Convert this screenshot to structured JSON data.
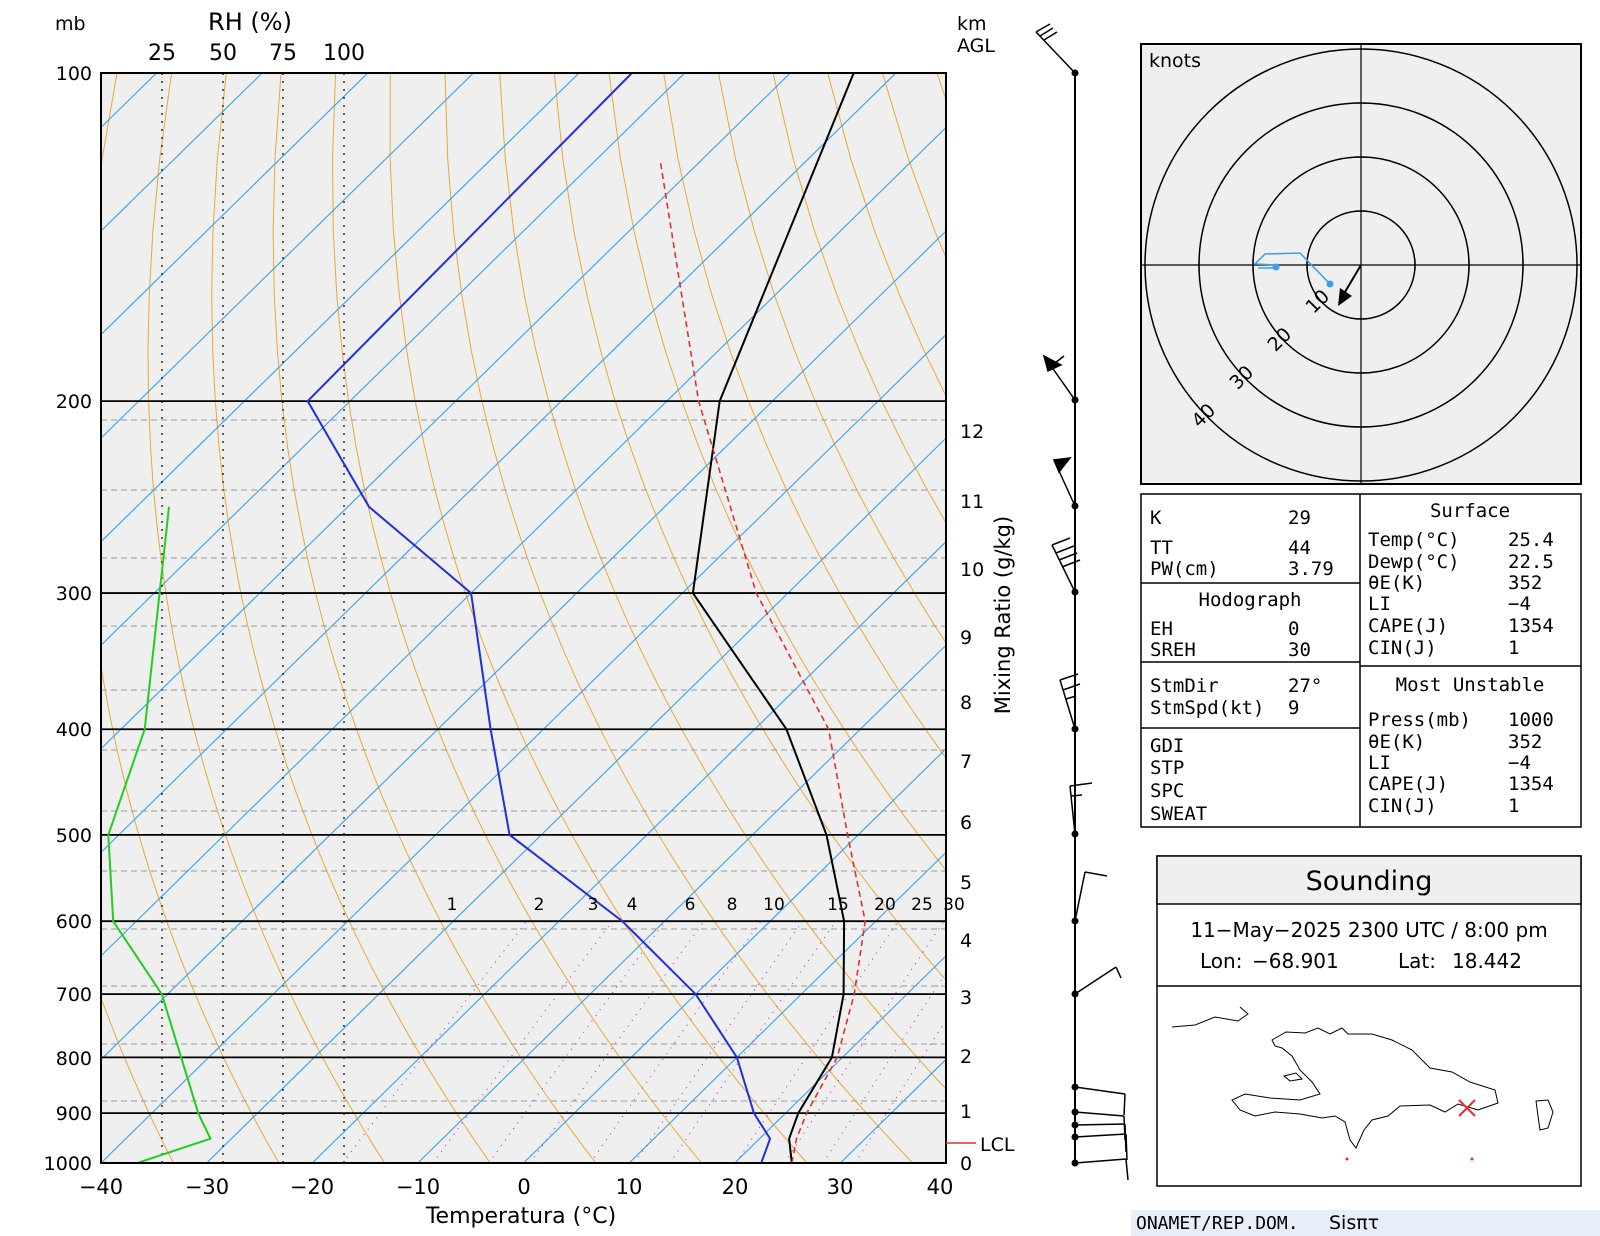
{
  "skewt": {
    "pressure_unit": "mb",
    "rh_label": "RH (%)",
    "rh_ticks": [
      "25",
      "50",
      "75",
      "100"
    ],
    "height_unit": "km\nAGL",
    "height_unit_line1": "km",
    "height_unit_line2": "AGL",
    "pressure_labels": [
      "100",
      "200",
      "300",
      "400",
      "500",
      "600",
      "700",
      "800",
      "900",
      "1000"
    ],
    "temp_labels": [
      "−40",
      "−30",
      "−20",
      "−10",
      "0",
      "10",
      "20",
      "30",
      "40"
    ],
    "height_labels": [
      "12",
      "11",
      "10",
      "9",
      "8",
      "7",
      "6",
      "5",
      "4",
      "3",
      "2",
      "1",
      "0"
    ],
    "mixing_ratio_labels": [
      "1",
      "2",
      "3",
      "4",
      "6",
      "8",
      "10",
      "15",
      "20",
      "25",
      "30"
    ],
    "xlabel": "Temperatura (°C)",
    "mixing_ratio_axis": "Mixing Ratio (g/kg)",
    "lcl_label": "LCL"
  },
  "chart_data": {
    "type": "line",
    "x_unit": "°C",
    "y_unit": "mb",
    "ylim": [
      1000,
      100
    ],
    "xlim": [
      -40,
      40
    ],
    "y_scale": "log",
    "series": [
      {
        "name": "",
        "color": "#000000",
        "x": [
          25.4,
          22.8,
          21.2,
          19.0,
          14.0,
          7.0,
          -3.0,
          -17.0,
          -39.0,
          -55.0,
          -74.0
        ],
        "y": [
          1000,
          950,
          900,
          800,
          700,
          600,
          500,
          400,
          300,
          200,
          100
        ]
      },
      {
        "name": "",
        "color": "#1f2fe0",
        "x": [
          22.5,
          21.0,
          17.0,
          10.0,
          0.0,
          -14.0,
          -33.0,
          -45.0,
          -60.0,
          -78.0,
          -94.0,
          -95.0
        ],
        "y": [
          1000,
          950,
          900,
          800,
          700,
          600,
          500,
          400,
          300,
          250,
          200,
          100
        ]
      },
      {
        "name": "",
        "color": "#e03030",
        "x": [
          25.4,
          23.5,
          22.0,
          19.5,
          15.0,
          9.0,
          -1.0,
          -13.0,
          -33.0,
          -57.0,
          -84.0
        ],
        "y": [
          1000,
          950,
          900,
          800,
          700,
          600,
          500,
          400,
          300,
          200,
          120
        ]
      },
      {
        "name": "",
        "color": "#22cc22",
        "rh_percent": [
          15,
          45,
          40,
          25,
          5,
          3,
          18,
          28
        ],
        "y": [
          1000,
          950,
          900,
          700,
          600,
          500,
          400,
          250
        ]
      }
    ]
  },
  "hodograph": {
    "unit": "knots",
    "rings": [
      "10",
      "20",
      "30",
      "40"
    ]
  },
  "indices": {
    "K": {
      "label": "K",
      "value": "29"
    },
    "TT": {
      "label": "TT",
      "value": "44"
    },
    "PW": {
      "label": "PW(cm)",
      "value": "3.79"
    },
    "hodo_title": "Hodograph",
    "EH": {
      "label": "EH",
      "value": "0"
    },
    "SREH": {
      "label": "SREH",
      "value": "30"
    },
    "StmDir": {
      "label": "StmDir",
      "value": "27°"
    },
    "StmSpd": {
      "label": "StmSpd(kt)",
      "value": "9"
    },
    "GDI": {
      "label": "GDI",
      "value": ""
    },
    "STP": {
      "label": "STP",
      "value": ""
    },
    "SPC": {
      "label": "SPC",
      "value": ""
    },
    "SWEAT": {
      "label": "SWEAT",
      "value": ""
    }
  },
  "surface": {
    "title": "Surface",
    "temp": {
      "label": "Temp(°C)",
      "value": "25.4"
    },
    "dewp": {
      "label": "Dewp(°C)",
      "value": "22.5"
    },
    "thetae": {
      "label": "θE(K)",
      "value": "352"
    },
    "li": {
      "label": "LI",
      "value": "−4"
    },
    "cape": {
      "label": "CAPE(J)",
      "value": "1354"
    },
    "cin": {
      "label": "CIN(J)",
      "value": "1"
    }
  },
  "most_unstable": {
    "title": "Most Unstable",
    "press": {
      "label": "Press(mb)",
      "value": "1000"
    },
    "thetae": {
      "label": "θE(K)",
      "value": "352"
    },
    "li": {
      "label": "LI",
      "value": "−4"
    },
    "cape": {
      "label": "CAPE(J)",
      "value": "1354"
    },
    "cin": {
      "label": "CIN(J)",
      "value": "1"
    }
  },
  "sounding": {
    "title": "Sounding",
    "datetime": "11−May−2025 2300  UTC / 8:00 pm",
    "lon_label": "Lon:",
    "lon_value": "−68.901",
    "lat_label": "Lat:",
    "lat_value": "18.442"
  },
  "footer": {
    "org": "ONAMET/REP.DOM.",
    "brand": "Sisπτ"
  },
  "colors": {
    "temperature": "#000000",
    "dewpoint": "#1f2fe0",
    "parcel": "#e03030",
    "rh": "#22cc22",
    "isotherm": "#3aa0e8",
    "dry_adiabat": "#e8a838",
    "mixing_ratio": "#b030d0",
    "background": "#efefef"
  }
}
